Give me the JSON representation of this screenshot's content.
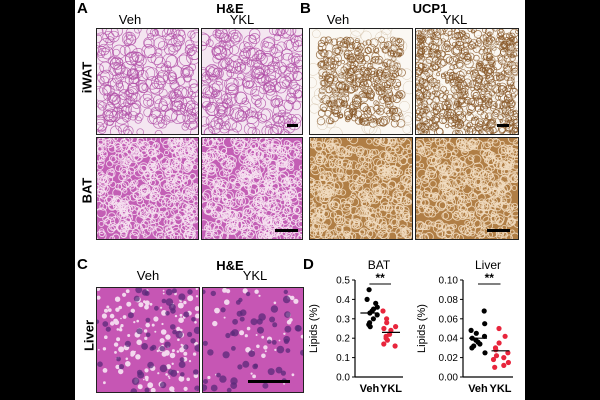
{
  "panels": {
    "A": {
      "letter": "A",
      "title": "H&E",
      "col1": "Veh",
      "col2": "YKL",
      "row1": "iWAT",
      "row2": "BAT"
    },
    "B": {
      "letter": "B",
      "title": "UCP1",
      "col1": "Veh",
      "col2": "YKL"
    },
    "C": {
      "letter": "C",
      "title": "H&E",
      "col1": "Veh",
      "col2": "YKL",
      "row1": "Liver"
    },
    "D": {
      "letter": "D"
    }
  },
  "colors": {
    "he_bg": "#f4e6f1",
    "he_membrane": "#b04fa6",
    "ucp1_stain": "#8a5a2b",
    "bat_he": "#c35eb5",
    "bat_ucp1": "#b07e45",
    "liver_bg": "#c656b4",
    "liver_nucleus": "#5a2a7a",
    "veh_points": "#000000",
    "ykl_points": "#e8253c"
  },
  "chart_data": [
    {
      "type": "scatter",
      "title": "BAT",
      "ylabel": "Lipids (%)",
      "categories": [
        "Veh",
        "YKL"
      ],
      "ylim": [
        0,
        0.5
      ],
      "yticks": [
        "0.0",
        "0.1",
        "0.2",
        "0.3",
        "0.4",
        "0.5"
      ],
      "significance": "**",
      "series": [
        {
          "name": "Veh",
          "mean": 0.33,
          "values": [
            0.45,
            0.4,
            0.38,
            0.36,
            0.35,
            0.34,
            0.33,
            0.32,
            0.3,
            0.28,
            0.27,
            0.26
          ]
        },
        {
          "name": "YKL",
          "mean": 0.23,
          "values": [
            0.34,
            0.3,
            0.28,
            0.26,
            0.25,
            0.24,
            0.22,
            0.21,
            0.2,
            0.19,
            0.17,
            0.16
          ]
        }
      ]
    },
    {
      "type": "scatter",
      "title": "Liver",
      "ylabel": "Lipids (%)",
      "categories": [
        "Veh",
        "YKL"
      ],
      "ylim": [
        0,
        0.1
      ],
      "yticks": [
        "0.00",
        "0.02",
        "0.04",
        "0.06",
        "0.08",
        "0.10"
      ],
      "significance": "**",
      "series": [
        {
          "name": "Veh",
          "mean": 0.04,
          "values": [
            0.068,
            0.055,
            0.048,
            0.045,
            0.042,
            0.04,
            0.038,
            0.036,
            0.034,
            0.032,
            0.03,
            0.025
          ]
        },
        {
          "name": "YKL",
          "mean": 0.027,
          "values": [
            0.05,
            0.042,
            0.035,
            0.03,
            0.028,
            0.025,
            0.022,
            0.02,
            0.018,
            0.015,
            0.012,
            0.01
          ]
        }
      ]
    }
  ]
}
